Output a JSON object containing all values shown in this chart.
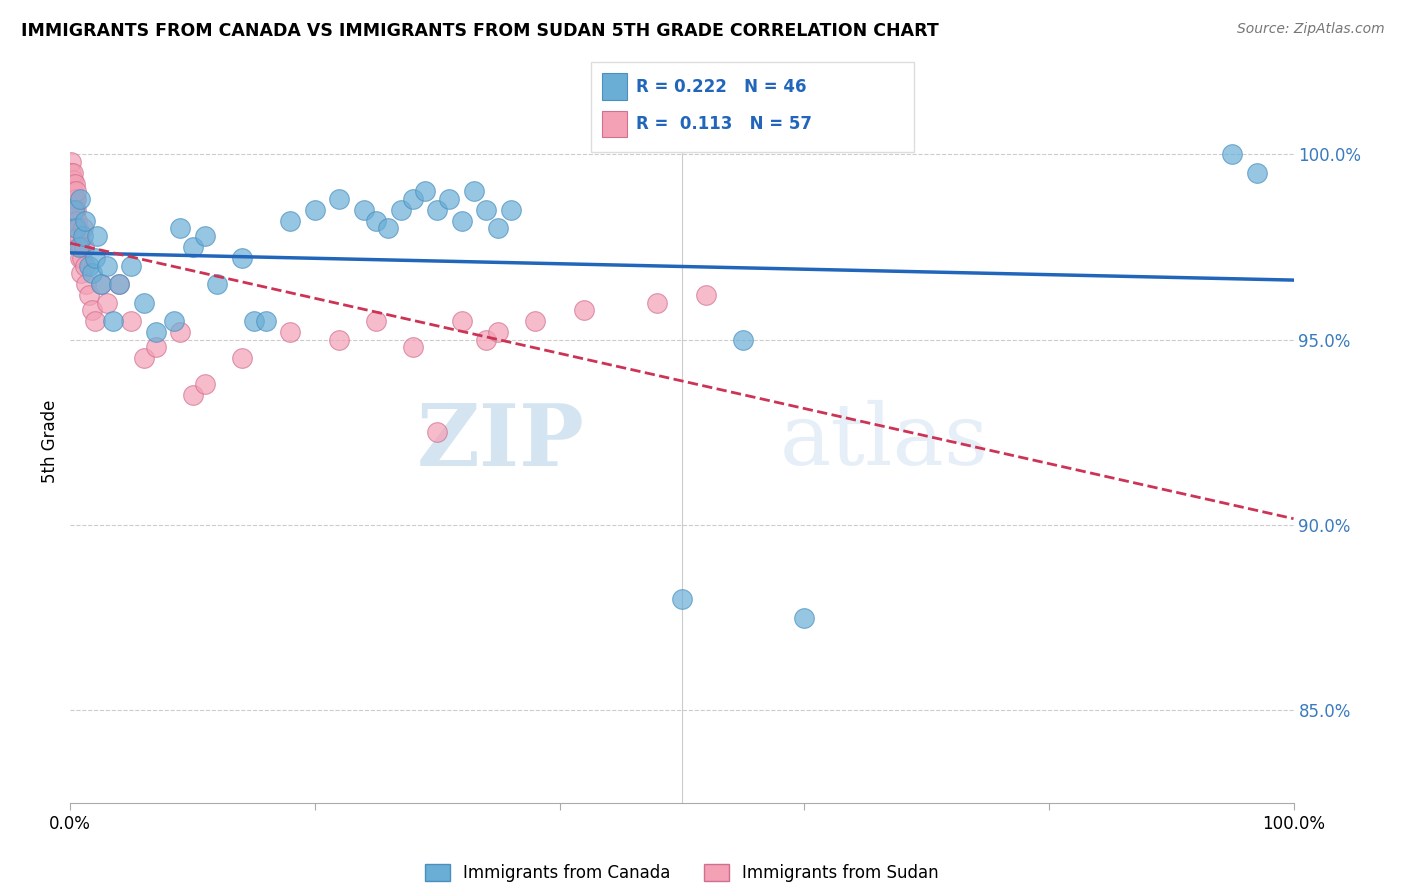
{
  "title": "IMMIGRANTS FROM CANADA VS IMMIGRANTS FROM SUDAN 5TH GRADE CORRELATION CHART",
  "source": "Source: ZipAtlas.com",
  "ylabel": "5th Grade",
  "yticks": [
    100.0,
    95.0,
    90.0,
    85.0
  ],
  "ytick_labels": [
    "100.0%",
    "95.0%",
    "90.0%",
    "85.0%"
  ],
  "xlim": [
    0.0,
    100.0
  ],
  "ylim": [
    82.5,
    102.0
  ],
  "canada_color": "#6aaed6",
  "sudan_color": "#f4a0b5",
  "canada_edge": "#4a8fc0",
  "sudan_edge": "#d07090",
  "trend_canada_color": "#2266bb",
  "trend_sudan_color": "#cc3355",
  "legend_r_canada": "R = 0.222",
  "legend_n_canada": "N = 46",
  "legend_r_sudan": "R =  0.113",
  "legend_n_sudan": "N = 57",
  "watermark_zip": "ZIP",
  "watermark_atlas": "atlas",
  "canada_x": [
    0.3,
    0.5,
    0.7,
    0.8,
    1.0,
    1.2,
    1.5,
    1.8,
    2.0,
    2.2,
    2.5,
    3.0,
    3.5,
    4.0,
    5.0,
    6.0,
    7.0,
    8.5,
    9.0,
    10.0,
    11.0,
    12.0,
    14.0,
    15.0,
    16.0,
    18.0,
    20.0,
    22.0,
    24.0,
    25.0,
    26.0,
    27.0,
    28.0,
    29.0,
    30.0,
    31.0,
    32.0,
    33.0,
    34.0,
    35.0,
    36.0,
    50.0,
    55.0,
    60.0,
    95.0,
    97.0
  ],
  "canada_y": [
    98.5,
    98.0,
    97.5,
    98.8,
    97.8,
    98.2,
    97.0,
    96.8,
    97.2,
    97.8,
    96.5,
    97.0,
    95.5,
    96.5,
    97.0,
    96.0,
    95.2,
    95.5,
    98.0,
    97.5,
    97.8,
    96.5,
    97.2,
    95.5,
    95.5,
    98.2,
    98.5,
    98.8,
    98.5,
    98.2,
    98.0,
    98.5,
    98.8,
    99.0,
    98.5,
    98.8,
    98.2,
    99.0,
    98.5,
    98.0,
    98.5,
    88.0,
    95.0,
    87.5,
    100.0,
    99.5
  ],
  "sudan_x": [
    0.05,
    0.08,
    0.1,
    0.12,
    0.15,
    0.18,
    0.2,
    0.22,
    0.25,
    0.28,
    0.3,
    0.32,
    0.35,
    0.38,
    0.4,
    0.42,
    0.45,
    0.48,
    0.5,
    0.55,
    0.6,
    0.65,
    0.7,
    0.75,
    0.8,
    0.85,
    0.9,
    0.95,
    1.0,
    1.1,
    1.2,
    1.3,
    1.5,
    1.8,
    2.0,
    2.5,
    3.0,
    4.0,
    5.0,
    6.0,
    7.0,
    9.0,
    10.0,
    11.0,
    14.0,
    18.0,
    22.0,
    25.0,
    28.0,
    30.0,
    32.0,
    34.0,
    35.0,
    38.0,
    42.0,
    48.0,
    52.0
  ],
  "sudan_y": [
    99.8,
    99.5,
    99.2,
    99.0,
    98.8,
    99.3,
    99.5,
    98.8,
    99.0,
    98.5,
    98.2,
    98.5,
    98.0,
    98.8,
    99.2,
    98.5,
    98.8,
    99.0,
    98.5,
    98.2,
    97.8,
    98.0,
    97.5,
    97.8,
    97.2,
    97.5,
    96.8,
    97.2,
    98.0,
    97.5,
    97.0,
    96.5,
    96.2,
    95.8,
    95.5,
    96.5,
    96.0,
    96.5,
    95.5,
    94.5,
    94.8,
    95.2,
    93.5,
    93.8,
    94.5,
    95.2,
    95.0,
    95.5,
    94.8,
    92.5,
    95.5,
    95.0,
    95.2,
    95.5,
    95.8,
    96.0,
    96.2
  ]
}
